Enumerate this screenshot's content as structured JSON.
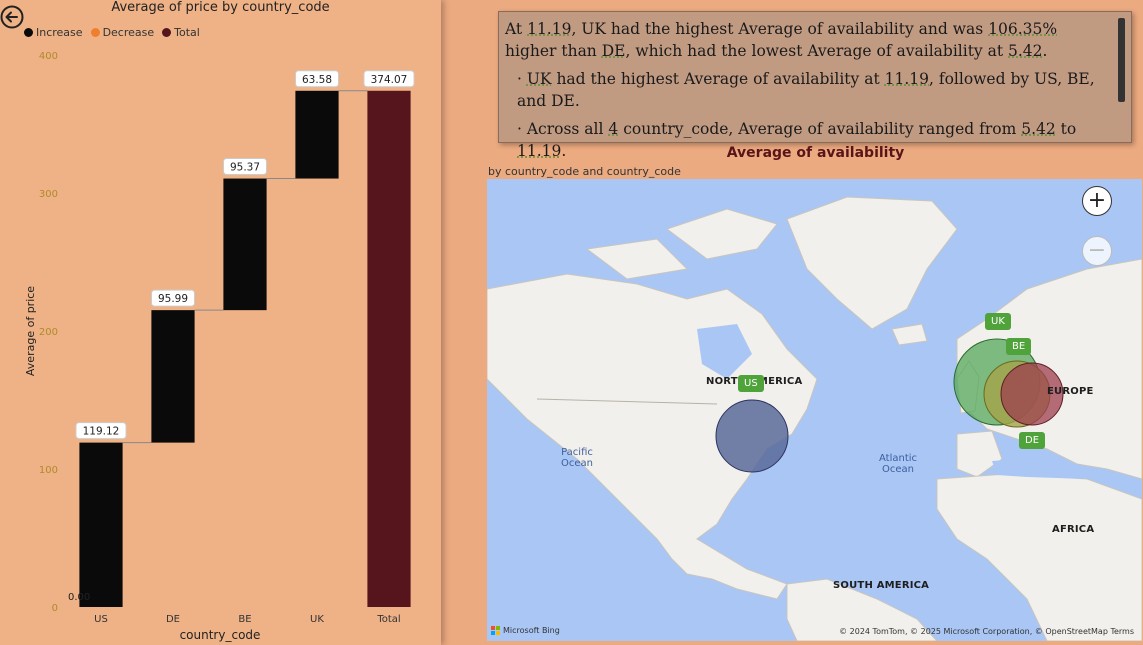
{
  "waterfall": {
    "title": "Average of price by country_code",
    "legend": [
      {
        "label": "Increase",
        "color": "#0a0a0a"
      },
      {
        "label": "Decrease",
        "color": "#f07f2d"
      },
      {
        "label": "Total",
        "color": "#56141c"
      }
    ],
    "x_axis_title": "country_code",
    "y_axis_title": "Average of price"
  },
  "chart_data": {
    "type": "bar",
    "subtype": "waterfall",
    "title": "Average of price by country_code",
    "xlabel": "country_code",
    "ylabel": "Average of price",
    "categories": [
      "US",
      "DE",
      "BE",
      "UK",
      "Total"
    ],
    "values": [
      119.12,
      95.99,
      95.37,
      63.58,
      374.07
    ],
    "value_labels": [
      "119.12",
      "95.99",
      "95.37",
      "63.58",
      "374.07"
    ],
    "start_label": "0.00",
    "ylim": [
      0,
      400
    ],
    "yticks": [
      0,
      100,
      200,
      300,
      400
    ],
    "increase_color": "#0a0a0a",
    "total_color": "#56141c",
    "tick_label_color": "#b08a2a"
  },
  "narrative": {
    "line1_pre": "At ",
    "v1": "11.19",
    "line1_mid": ", UK had the highest Average of availability and was ",
    "v2": "106.35%",
    "line1_mid2": " higher than ",
    "v3": "DE",
    "line1_mid3": ", which had the lowest Average of availability at ",
    "v4": "5.42",
    "line1_end": ".",
    "b1_pre": "· ",
    "b1_v1": "UK",
    "b1_mid": " had the highest Average of availability at ",
    "b1_v2": "11.19",
    "b1_end": ", followed by US, BE, and DE.",
    "b2_pre": "· Across all ",
    "b2_v1": "4",
    "b2_mid": " country_code, Average of availability ranged from ",
    "b2_v2": "5.42",
    "b2_mid2": " to ",
    "b2_v3": "11.19",
    "b2_end": "."
  },
  "map": {
    "title": "Average of availability",
    "subtitle": "by country_code and country_code",
    "zoom_in": "+",
    "zoom_out": "−",
    "regions": [
      "NORTH AMERICA",
      "EUROPE",
      "AFRICA",
      "SOUTH AMERICA"
    ],
    "oceans": [
      "Pacific\nOcean",
      "Atlantic\nOcean"
    ],
    "bubbles": [
      {
        "code": "US",
        "value": 7.8,
        "color": "#5b6a9a"
      },
      {
        "code": "UK",
        "value": 11.19,
        "color": "#56a85b"
      },
      {
        "code": "BE",
        "value": 7.1,
        "color": "#a4a448"
      },
      {
        "code": "DE",
        "value": 5.42,
        "color": "#9e3f4d"
      }
    ],
    "logo_text": "Microsoft Bing",
    "copyright": "© 2024 TomTom, © 2025 Microsoft Corporation, © OpenStreetMap  Terms"
  }
}
